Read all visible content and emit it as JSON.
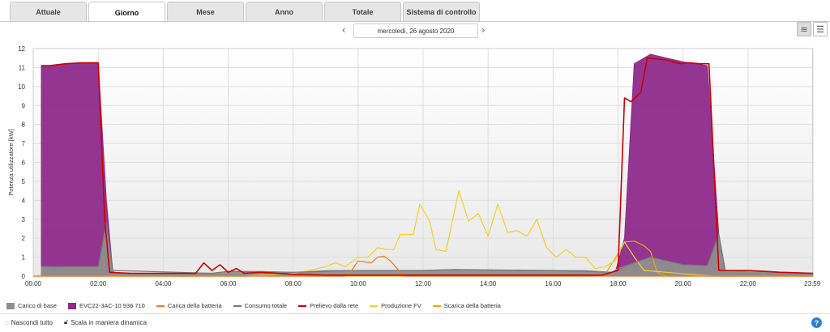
{
  "tabs": [
    {
      "label": "Attuale"
    },
    {
      "label": "Giorno"
    },
    {
      "label": "Mese"
    },
    {
      "label": "Anno"
    },
    {
      "label": "Totale"
    },
    {
      "label": "Sistema di controllo"
    }
  ],
  "active_tab": 1,
  "date_label": "mercoledì, 26 agosto 2020",
  "controls": {
    "hide_all": "Nascondi tutto",
    "dynamic_scale": "Scala in maniera dinamica"
  },
  "colors": {
    "base": "#8f8f8f",
    "evc": "#8e2a8c",
    "charge": "#f07820",
    "total": "#777777",
    "grid": "#cc0000",
    "pv": "#f5cf28",
    "discharge": "#e8a800"
  },
  "chart_data": {
    "type": "area",
    "ylabel": "Potenza utilizzatore [kW]",
    "ylim": [
      0,
      12
    ],
    "yticks": [
      "0",
      "1",
      "2",
      "3",
      "4",
      "5",
      "6",
      "7",
      "8",
      "9",
      "10",
      "11",
      "12"
    ],
    "xlim": [
      0,
      24
    ],
    "xticks": [
      {
        "v": 0,
        "label": "00:00"
      },
      {
        "v": 2,
        "label": "02:00"
      },
      {
        "v": 4,
        "label": "04:00"
      },
      {
        "v": 6,
        "label": "06:00"
      },
      {
        "v": 8,
        "label": "08:00"
      },
      {
        "v": 10,
        "label": "10:00"
      },
      {
        "v": 12,
        "label": "12:00"
      },
      {
        "v": 14,
        "label": "14:00"
      },
      {
        "v": 16,
        "label": "16:00"
      },
      {
        "v": 18,
        "label": "18:00"
      },
      {
        "v": 20,
        "label": "20:00"
      },
      {
        "v": 22,
        "label": "22:00"
      },
      {
        "v": 23.98,
        "label": "23:59"
      }
    ],
    "grid": true,
    "legend_position": "bottom",
    "series": [
      {
        "name": "Carico di base",
        "kind": "area",
        "colorKey": "base",
        "points": [
          [
            0.25,
            0.5
          ],
          [
            0.5,
            0.5
          ],
          [
            0.75,
            0.45
          ],
          [
            1,
            0.5
          ],
          [
            1.5,
            0.5
          ],
          [
            2.0,
            0.5
          ],
          [
            2.25,
            2.8
          ],
          [
            2.45,
            0.3
          ],
          [
            2.5,
            0.15
          ],
          [
            5.5,
            0.15
          ],
          [
            6,
            0.25
          ],
          [
            7,
            0.25
          ],
          [
            8,
            0.2
          ],
          [
            9,
            0.3
          ],
          [
            10,
            0.3
          ],
          [
            11,
            0.3
          ],
          [
            12,
            0.3
          ],
          [
            13,
            0.35
          ],
          [
            14,
            0.3
          ],
          [
            15,
            0.3
          ],
          [
            16,
            0.3
          ],
          [
            17,
            0.3
          ],
          [
            17.8,
            0.2
          ],
          [
            18,
            0.4
          ],
          [
            18.5,
            0.7
          ],
          [
            19,
            1.0
          ],
          [
            19.5,
            0.8
          ],
          [
            20,
            0.6
          ],
          [
            20.75,
            0.55
          ],
          [
            21.1,
            2.2
          ],
          [
            21.3,
            0.3
          ],
          [
            22,
            0.2
          ],
          [
            24,
            0.15
          ]
        ]
      },
      {
        "name": "EVC22-3AC-10 936 710",
        "kind": "area",
        "colorKey": "evc",
        "points": [
          [
            0.25,
            11.1
          ],
          [
            0.5,
            11.1
          ],
          [
            1,
            11.2
          ],
          [
            1.5,
            11.25
          ],
          [
            2.0,
            11.25
          ],
          [
            2.25,
            4
          ],
          [
            2.45,
            0.2
          ],
          [
            2.5,
            0.1
          ],
          [
            17.9,
            0.1
          ],
          [
            18.2,
            2
          ],
          [
            18.5,
            11.2
          ],
          [
            19,
            11.7
          ],
          [
            19.5,
            11.5
          ],
          [
            20,
            11.3
          ],
          [
            20.75,
            11.1
          ],
          [
            21.1,
            2.2
          ],
          [
            21.3,
            0.2
          ],
          [
            24,
            0.1
          ]
        ]
      },
      {
        "name": "Carica della batteria",
        "kind": "line",
        "colorKey": "charge",
        "points": [
          [
            0,
            0
          ],
          [
            9.6,
            0
          ],
          [
            9.8,
            0.3
          ],
          [
            10.0,
            0.8
          ],
          [
            10.2,
            0.75
          ],
          [
            10.4,
            0.7
          ],
          [
            10.6,
            1.0
          ],
          [
            10.8,
            1.05
          ],
          [
            11.0,
            0.8
          ],
          [
            11.2,
            0.4
          ],
          [
            11.4,
            0
          ],
          [
            24,
            0
          ]
        ]
      },
      {
        "name": "Consumo totale",
        "kind": "line",
        "colorKey": "total",
        "points": [
          [
            0.25,
            0.5
          ],
          [
            1,
            0.5
          ],
          [
            2.0,
            0.5
          ],
          [
            2.25,
            2.8
          ],
          [
            2.45,
            0.3
          ],
          [
            5.5,
            0.15
          ],
          [
            6,
            0.25
          ],
          [
            8,
            0.2
          ],
          [
            10,
            0.3
          ],
          [
            12,
            0.3
          ],
          [
            13,
            0.35
          ],
          [
            16,
            0.3
          ],
          [
            17.8,
            0.2
          ],
          [
            18.5,
            0.7
          ],
          [
            19,
            1.0
          ],
          [
            20,
            0.6
          ],
          [
            20.75,
            0.55
          ],
          [
            21.1,
            2.2
          ],
          [
            21.3,
            0.3
          ],
          [
            24,
            0.15
          ]
        ]
      },
      {
        "name": "Prelievo dalla rete",
        "kind": "line",
        "colorKey": "grid",
        "points": [
          [
            0.25,
            11.1
          ],
          [
            0.5,
            11.1
          ],
          [
            1,
            11.2
          ],
          [
            1.5,
            11.25
          ],
          [
            2.0,
            11.25
          ],
          [
            2.2,
            3
          ],
          [
            2.35,
            0.2
          ],
          [
            3,
            0.15
          ],
          [
            4,
            0.15
          ],
          [
            5,
            0.15
          ],
          [
            5.25,
            0.7
          ],
          [
            5.5,
            0.3
          ],
          [
            5.75,
            0.6
          ],
          [
            6,
            0.2
          ],
          [
            6.25,
            0.4
          ],
          [
            6.5,
            0.15
          ],
          [
            7,
            0.2
          ],
          [
            8,
            0.1
          ],
          [
            9,
            0.05
          ],
          [
            12,
            0.05
          ],
          [
            17.5,
            0.05
          ],
          [
            18.0,
            0.3
          ],
          [
            18.2,
            9.4
          ],
          [
            18.4,
            9.2
          ],
          [
            18.7,
            9.7
          ],
          [
            18.9,
            11.5
          ],
          [
            19.5,
            11.4
          ],
          [
            19.9,
            11.2
          ],
          [
            20.2,
            11.25
          ],
          [
            20.5,
            11.2
          ],
          [
            20.8,
            11.2
          ],
          [
            21.1,
            0.3
          ],
          [
            22,
            0.3
          ],
          [
            22.5,
            0.25
          ],
          [
            23,
            0.2
          ],
          [
            24,
            0.15
          ]
        ]
      },
      {
        "name": "Produzione FV",
        "kind": "line",
        "colorKey": "pv",
        "points": [
          [
            0,
            0
          ],
          [
            6.5,
            0
          ],
          [
            7,
            0.05
          ],
          [
            7.5,
            0.1
          ],
          [
            8,
            0.15
          ],
          [
            8.5,
            0.3
          ],
          [
            9,
            0.5
          ],
          [
            9.3,
            0.7
          ],
          [
            9.6,
            0.5
          ],
          [
            10,
            1.0
          ],
          [
            10.3,
            1.0
          ],
          [
            10.6,
            1.5
          ],
          [
            10.9,
            1.4
          ],
          [
            11.1,
            1.4
          ],
          [
            11.3,
            2.2
          ],
          [
            11.7,
            2.2
          ],
          [
            11.9,
            3.8
          ],
          [
            12.2,
            2.9
          ],
          [
            12.4,
            1.4
          ],
          [
            12.7,
            1.3
          ],
          [
            13.1,
            4.5
          ],
          [
            13.4,
            2.9
          ],
          [
            13.7,
            3.3
          ],
          [
            14.0,
            2.1
          ],
          [
            14.3,
            3.8
          ],
          [
            14.6,
            2.3
          ],
          [
            14.9,
            2.4
          ],
          [
            15.2,
            2.1
          ],
          [
            15.5,
            3.0
          ],
          [
            15.8,
            1.5
          ],
          [
            16.1,
            1.0
          ],
          [
            16.4,
            1.4
          ],
          [
            16.7,
            1.0
          ],
          [
            17.0,
            1.0
          ],
          [
            17.3,
            0.4
          ],
          [
            17.6,
            0.5
          ],
          [
            17.9,
            0.8
          ],
          [
            18.2,
            1.8
          ],
          [
            18.5,
            1.0
          ],
          [
            18.8,
            0.3
          ],
          [
            19.5,
            0.2
          ],
          [
            20.5,
            0.05
          ],
          [
            21,
            0
          ],
          [
            24,
            0
          ]
        ]
      },
      {
        "name": "Scarica della batteria",
        "kind": "line",
        "colorKey": "discharge",
        "points": [
          [
            0,
            0
          ],
          [
            17.2,
            0
          ],
          [
            17.6,
            0.1
          ],
          [
            17.9,
            0.9
          ],
          [
            18.2,
            1.8
          ],
          [
            18.5,
            1.85
          ],
          [
            18.8,
            1.6
          ],
          [
            19.0,
            1.3
          ],
          [
            19.2,
            0.2
          ],
          [
            19.5,
            0
          ],
          [
            24,
            0
          ]
        ]
      }
    ]
  }
}
